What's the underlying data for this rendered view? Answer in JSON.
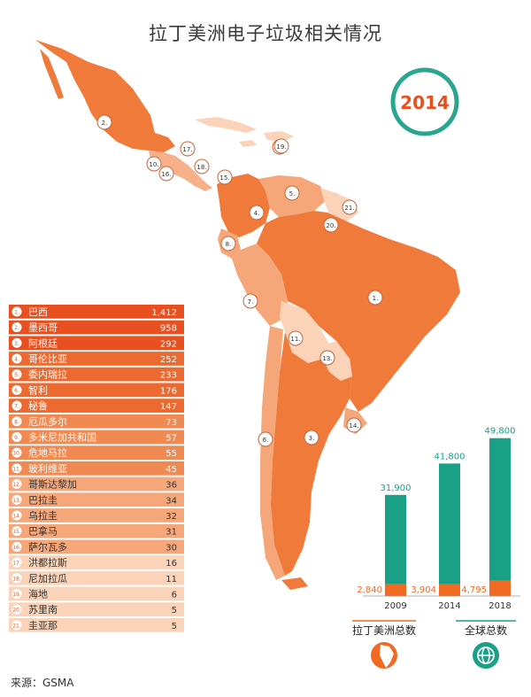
{
  "title": "拉丁美洲电子垃圾相关情况",
  "year_badge": "2014",
  "source": "来源：GSMA",
  "colors": {
    "orange_dark": "#e8501f",
    "orange_mid": "#f07a3a",
    "orange_light": "#f5a77a",
    "orange_pale": "#fad3b8",
    "teal": "#1aa086",
    "badge_ring": "#2aa58f",
    "bar_orange": "#f06a22"
  },
  "chart_data": [
    {
      "type": "table",
      "categories": [
        "巴西",
        "墨西哥",
        "阿根廷",
        "哥伦比亚",
        "委内瑞拉",
        "智利",
        "秘鲁",
        "厄瓜多尔",
        "多米尼加共和国",
        "危地马拉",
        "玻利维亚",
        "哥斯达黎加",
        "巴拉圭",
        "乌拉圭",
        "巴拿马",
        "萨尔瓦多",
        "洪都拉斯",
        "尼加拉瓜",
        "海地",
        "苏里南",
        "圭亚那"
      ],
      "values": [
        "1,412",
        "958",
        "292",
        "252",
        "233",
        "176",
        "147",
        "73",
        "57",
        "55",
        "45",
        "36",
        "34",
        "32",
        "31",
        "30",
        "16",
        "11",
        "6",
        "5",
        "5"
      ],
      "ranks": [
        "1.",
        "2.",
        "3.",
        "4.",
        "5.",
        "6.",
        "7.",
        "8.",
        "9.",
        "10.",
        "11.",
        "12.",
        "13.",
        "14.",
        "15.",
        "16.",
        "17.",
        "18.",
        "19.",
        "20.",
        "21."
      ]
    },
    {
      "type": "bar",
      "categories": [
        "2009",
        "2014",
        "2018"
      ],
      "series": [
        {
          "name": "拉丁美洲总数",
          "values": [
            2840,
            3904,
            4795
          ],
          "labels": [
            "2,840",
            "3,904",
            "4,795"
          ]
        },
        {
          "name": "全球总数",
          "values": [
            31900,
            41800,
            49800
          ],
          "labels": [
            "31,900",
            "41,800",
            "49,800"
          ]
        }
      ],
      "ylim": [
        0,
        50000
      ]
    }
  ],
  "map_labels": [
    "1.",
    "2.",
    "3.",
    "4.",
    "5.",
    "6.",
    "7.",
    "8.",
    "9.",
    "10.",
    "11.",
    "12.",
    "13.",
    "14.",
    "15.",
    "16.",
    "17.",
    "18.",
    "19.",
    "20.",
    "21."
  ],
  "legend": {
    "latam_label": "拉丁美洲总数",
    "global_label": "全球总数",
    "latam_icon": "south-america-globe-icon",
    "global_icon": "globe-icon"
  }
}
